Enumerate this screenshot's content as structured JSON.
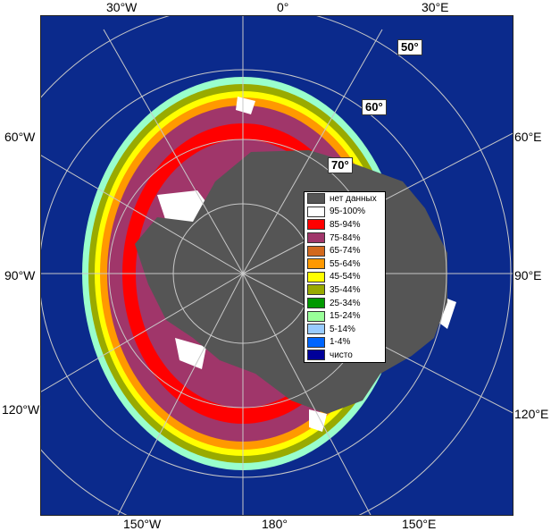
{
  "lon_labels": {
    "top": [
      "30°W",
      "0°",
      "30°E"
    ],
    "left": [
      "60°W",
      "90°W",
      "120°W"
    ],
    "right": [
      "60°E",
      "90°E",
      "120°E"
    ],
    "bottom": [
      "150°W",
      "180°",
      "150°E"
    ]
  },
  "lat_labels": [
    "50°",
    "60°",
    "70°"
  ],
  "legend": [
    {
      "label": "нет данных",
      "color": "#555555"
    },
    {
      "label": "95-100%",
      "color": "#ffffff"
    },
    {
      "label": "85-94%",
      "color": "#ff0000"
    },
    {
      "label": "75-84%",
      "color": "#a0366a"
    },
    {
      "label": "65-74%",
      "color": "#d2691e"
    },
    {
      "label": "55-64%",
      "color": "#ff9900"
    },
    {
      "label": "45-54%",
      "color": "#ffff00"
    },
    {
      "label": "35-44%",
      "color": "#99aa00"
    },
    {
      "label": "25-34%",
      "color": "#009900"
    },
    {
      "label": "15-24%",
      "color": "#99ff99"
    },
    {
      "label": "5-14%",
      "color": "#99ccff"
    },
    {
      "label": "1-4%",
      "color": "#0066ff"
    },
    {
      "label": "чисто",
      "color": "#000099"
    }
  ],
  "colors": {
    "ocean": "#0b2a8c",
    "land": "#555555",
    "grid": "#c8c8c8"
  }
}
